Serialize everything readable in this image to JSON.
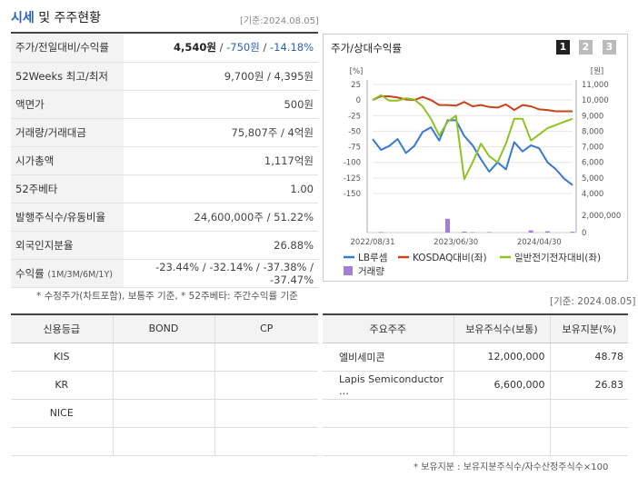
{
  "header": {
    "title_accent": "시세",
    "title_rest": " 및 주주현황",
    "date": "[기준:2024.08.05]"
  },
  "summary": [
    {
      "label": "주가/전일대비/수익률",
      "price": "4,540원",
      "change": "-750원",
      "rate": "-14.18%"
    },
    {
      "label": "52Weeks 최고/최저",
      "value": "9,700원 / 4,395원"
    },
    {
      "label": "액면가",
      "value": "500원"
    },
    {
      "label": "거래량/거래대금",
      "value": "75,807주 / 4억원"
    },
    {
      "label": "시가총액",
      "value": "1,117억원"
    },
    {
      "label": "52주베타",
      "value": "1.00"
    },
    {
      "label": "발행주식수/유동비율",
      "value": "24,600,000주 / 51.22%"
    },
    {
      "label": "외국인지분율",
      "value": "26.88%"
    },
    {
      "label": "수익률",
      "label_sub": "(1M/3M/6M/1Y)",
      "values": [
        "-23.44%",
        "-32.14%",
        "-37.38%",
        "-37.47%"
      ]
    }
  ],
  "summary_note": "* 수정주가(차트포함), 보통주 기준, * 52주베타: 주간수익률 기준",
  "chart_panel": {
    "title": "주가/상대수익률",
    "period_buttons": [
      "1",
      "2",
      "3"
    ],
    "active_button": "1",
    "left_unit": "[%]",
    "right_unit": "[원]"
  },
  "chart_data": {
    "type": "line",
    "x": [
      "2022/08/31",
      "2022/09/30",
      "2022/10/31",
      "2022/11/30",
      "2022/12/31",
      "2023/01/31",
      "2023/02/28",
      "2023/03/31",
      "2023/04/30",
      "2023/05/31",
      "2023/06/30",
      "2023/07/31",
      "2023/08/31",
      "2023/09/30",
      "2023/10/31",
      "2023/11/30",
      "2023/12/31",
      "2024/01/31",
      "2024/02/29",
      "2024/03/31",
      "2024/04/30",
      "2024/05/31",
      "2024/06/30",
      "2024/07/31",
      "2024/08/05"
    ],
    "x_tick_labels": [
      "2022/08/31",
      "2023/06/30",
      "2024/04/30"
    ],
    "series": [
      {
        "name": "LB루셈",
        "axis": "right",
        "color": "#3a78d4",
        "values": [
          7500,
          6800,
          7050,
          7500,
          6600,
          7050,
          7950,
          8250,
          7400,
          8700,
          8700,
          7700,
          7100,
          6200,
          5400,
          6000,
          5550,
          7300,
          6700,
          7100,
          6900,
          6000,
          5550,
          4950,
          4540
        ]
      },
      {
        "name": "KOSDAQ대비(좌)",
        "axis": "left",
        "color": "#c8431b",
        "values": [
          0,
          6,
          6,
          4,
          1,
          0,
          5,
          0,
          -8,
          -8,
          -9,
          -3,
          -10,
          -8,
          -11,
          -12,
          -7,
          -16,
          -8,
          -10,
          -15,
          -16,
          -18,
          -18,
          -18
        ]
      },
      {
        "name": "일반전기전자대비(좌)",
        "axis": "left",
        "color": "#8fc322",
        "values": [
          0,
          8,
          -1,
          -1,
          3,
          1,
          -10,
          -30,
          -57,
          -35,
          -25,
          -127,
          -100,
          -70,
          -90,
          -100,
          -70,
          -30,
          -30,
          -65,
          -55,
          -45,
          -40,
          -35,
          -30
        ]
      },
      {
        "name": "거래량",
        "axis": "volume",
        "color": "#9f80d4",
        "values": [
          0,
          60000,
          0,
          0,
          0,
          0,
          0,
          0,
          0,
          1600000,
          0,
          120000,
          50000,
          0,
          60000,
          0,
          0,
          0,
          0,
          250000,
          0,
          150000,
          0,
          0,
          100000
        ]
      }
    ],
    "left_axis": {
      "ticks": [
        25,
        0,
        -25,
        -50,
        -75,
        -100,
        -125,
        -150
      ],
      "ylim": [
        -150,
        25
      ]
    },
    "right_axis": {
      "ticks": [
        "11,000",
        "10,000",
        "9,000",
        "8,000",
        "7,000",
        "6,000",
        "5,000",
        "4,000"
      ],
      "ylim": [
        4000,
        11000
      ]
    },
    "volume_axis": {
      "ticks": [
        "2,000,000",
        "0"
      ],
      "ylim": [
        0,
        2000000
      ]
    },
    "legend": [
      "LB루셈",
      "KOSDAQ대비(좌)",
      "일반전기전자대비(좌)",
      "거래량"
    ]
  },
  "date2": "[기준: 2024.08.05]",
  "credit": {
    "headers": [
      "신용등급",
      "BOND",
      "CP"
    ],
    "rows": [
      [
        "KIS",
        "",
        ""
      ],
      [
        "KR",
        "",
        ""
      ],
      [
        "NICE",
        "",
        ""
      ],
      [
        "",
        "",
        ""
      ]
    ]
  },
  "holders": {
    "headers": [
      "주요주주",
      "보유주식수(보통)",
      "보유지분(%)"
    ],
    "rows": [
      [
        "엘비세미콘",
        "12,000,000",
        "48.78"
      ],
      [
        "Lapis Semiconductor …",
        "6,600,000",
        "26.83"
      ],
      [
        "",
        "",
        ""
      ],
      [
        "",
        "",
        ""
      ]
    ]
  },
  "holders_note": "* 보유지분 : 보유지분주식수/자수산정주식수×100"
}
